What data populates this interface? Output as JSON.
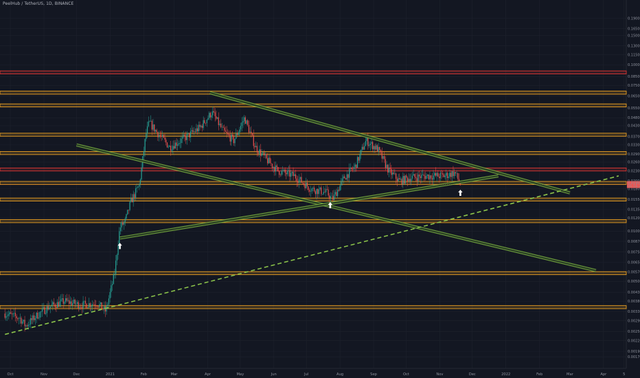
{
  "header": {
    "ticker": "PeelHub / TetherUS, 1D, BINANCE"
  },
  "colors": {
    "background": "#131722",
    "grid": "#1e222d",
    "candle_up": "#26a69a",
    "candle_down": "#ef5350",
    "support_zone": "#f5a623",
    "resistance_zone": "#e53935",
    "trendline": "#7cb342",
    "dashed_trendline": "#8bc34a",
    "arrow": "#ffffff",
    "price_badge": "#ef5350"
  },
  "chart_data": {
    "type": "candlestick",
    "x_axis": {
      "labels": [
        "Oct",
        "Nov",
        "Dec",
        "2021",
        "Feb",
        "Mar",
        "Apr",
        "May",
        "Jun",
        "Jul",
        "Aug",
        "Sep",
        "Oct",
        "Nov",
        "Dec",
        "2022",
        "Feb",
        "Mar",
        "Apr",
        "5"
      ]
    },
    "y_axis": {
      "scale": "log",
      "ylim": [
        0.00176,
        0.2
      ],
      "tick_labels": [
        "0.19000",
        "0.16500",
        "0.15000",
        "0.13000",
        "0.11500",
        "0.10000",
        "0.08500",
        "0.07500",
        "0.06500",
        "0.05500",
        "0.04800",
        "0.04300",
        "0.03700",
        "0.03300",
        "0.02900",
        "0.02600",
        "0.02300",
        "0.02000",
        "0.01800",
        "0.01550",
        "0.01350",
        "0.01200",
        "0.01000",
        "0.00870",
        "0.00750",
        "0.00650",
        "0.00570",
        "0.00500",
        "0.00430",
        "0.00380",
        "0.00330",
        "0.00290",
        "0.00250",
        "0.00220",
        "0.00190",
        "0.00176"
      ],
      "current_price_label": "0.01907",
      "current_price_sublabel": "05:16:22"
    },
    "price_series": [
      {
        "date": "2020-09-26",
        "value": 0.0032
      },
      {
        "date": "2020-10-10",
        "value": 0.003
      },
      {
        "date": "2020-10-15",
        "value": 0.0027
      },
      {
        "date": "2020-10-25",
        "value": 0.0031
      },
      {
        "date": "2020-11-05",
        "value": 0.0035
      },
      {
        "date": "2020-11-20",
        "value": 0.0038
      },
      {
        "date": "2020-12-05",
        "value": 0.0036
      },
      {
        "date": "2020-12-20",
        "value": 0.0037
      },
      {
        "date": "2020-12-28",
        "value": 0.0033
      },
      {
        "date": "2021-01-05",
        "value": 0.0055
      },
      {
        "date": "2021-01-10",
        "value": 0.0105
      },
      {
        "date": "2021-01-15",
        "value": 0.0115
      },
      {
        "date": "2021-01-20",
        "value": 0.015
      },
      {
        "date": "2021-01-28",
        "value": 0.019
      },
      {
        "date": "2021-02-03",
        "value": 0.038
      },
      {
        "date": "2021-02-06",
        "value": 0.045
      },
      {
        "date": "2021-02-15",
        "value": 0.038
      },
      {
        "date": "2021-02-25",
        "value": 0.032
      },
      {
        "date": "2021-03-10",
        "value": 0.036
      },
      {
        "date": "2021-03-25",
        "value": 0.042
      },
      {
        "date": "2021-04-05",
        "value": 0.052
      },
      {
        "date": "2021-04-15",
        "value": 0.04
      },
      {
        "date": "2021-04-25",
        "value": 0.035
      },
      {
        "date": "2021-05-05",
        "value": 0.048
      },
      {
        "date": "2021-05-15",
        "value": 0.032
      },
      {
        "date": "2021-05-25",
        "value": 0.027
      },
      {
        "date": "2021-06-05",
        "value": 0.023
      },
      {
        "date": "2021-06-20",
        "value": 0.0215
      },
      {
        "date": "2021-07-05",
        "value": 0.018
      },
      {
        "date": "2021-07-20",
        "value": 0.017
      },
      {
        "date": "2021-07-25",
        "value": 0.0155
      },
      {
        "date": "2021-08-05",
        "value": 0.021
      },
      {
        "date": "2021-08-15",
        "value": 0.0245
      },
      {
        "date": "2021-08-25",
        "value": 0.035
      },
      {
        "date": "2021-09-05",
        "value": 0.031
      },
      {
        "date": "2021-09-15",
        "value": 0.023
      },
      {
        "date": "2021-09-25",
        "value": 0.02
      },
      {
        "date": "2021-10-05",
        "value": 0.021
      },
      {
        "date": "2021-10-20",
        "value": 0.0215
      },
      {
        "date": "2021-11-05",
        "value": 0.0215
      },
      {
        "date": "2021-11-15",
        "value": 0.0225
      },
      {
        "date": "2021-11-20",
        "value": 0.0191
      }
    ],
    "horizontal_zones": [
      {
        "price": 0.09,
        "kind": "resistance"
      },
      {
        "price": 0.068,
        "kind": "support"
      },
      {
        "price": 0.057,
        "kind": "support"
      },
      {
        "price": 0.038,
        "kind": "support"
      },
      {
        "price": 0.0295,
        "kind": "support"
      },
      {
        "price": 0.0235,
        "kind": "resistance"
      },
      {
        "price": 0.0195,
        "kind": "support"
      },
      {
        "price": 0.0155,
        "kind": "support"
      },
      {
        "price": 0.0115,
        "kind": "support"
      },
      {
        "price": 0.0056,
        "kind": "support"
      },
      {
        "price": 0.0035,
        "kind": "support"
      }
    ],
    "trendlines": [
      {
        "from": {
          "date": "2021-04-03",
          "value": 0.068
        },
        "to": {
          "date": "2022-03-01",
          "value": 0.017
        },
        "style": "channel"
      },
      {
        "from": {
          "date": "2020-12-01",
          "value": 0.033
        },
        "to": {
          "date": "2022-03-25",
          "value": 0.0058
        },
        "style": "channel"
      },
      {
        "from": {
          "date": "2021-01-10",
          "value": 0.0091
        },
        "to": {
          "date": "2021-12-25",
          "value": 0.0215
        },
        "style": "channel"
      },
      {
        "from": {
          "date": "2020-09-26",
          "value": 0.0024
        },
        "to": {
          "date": "2022-04-15",
          "value": 0.0215
        },
        "style": "dashed"
      }
    ],
    "markers": [
      {
        "date": "2021-01-10",
        "value": 0.0091,
        "kind": "up-arrow"
      },
      {
        "date": "2021-07-23",
        "value": 0.016,
        "kind": "up-arrow"
      },
      {
        "date": "2021-11-20",
        "value": 0.019,
        "kind": "up-arrow"
      }
    ]
  }
}
